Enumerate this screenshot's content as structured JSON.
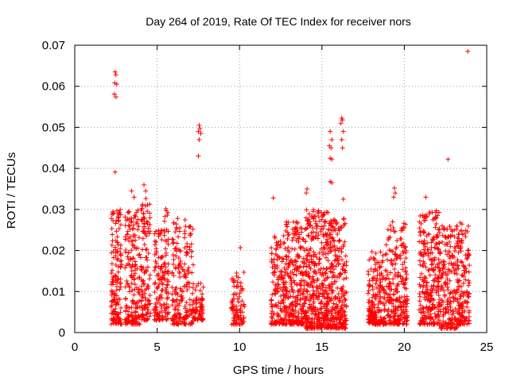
{
  "chart_data": {
    "type": "scatter",
    "title": "Day 264 of 2019, Rate Of TEC Index for receiver nors",
    "xlabel": "GPS time / hours",
    "ylabel": "ROTI / TECUs",
    "xlim": [
      0,
      25
    ],
    "ylim": [
      0,
      0.07
    ],
    "xticks": [
      0,
      5,
      10,
      15,
      20,
      25
    ],
    "yticks": [
      0,
      0.01,
      0.02,
      0.03,
      0.04,
      0.05,
      0.06,
      0.07
    ],
    "xtick_labels": [
      "0",
      "5",
      "10",
      "15",
      "20",
      "25"
    ],
    "ytick_labels": [
      "0",
      "0.01",
      "0.02",
      "0.03",
      "0.04",
      "0.05",
      "0.06",
      "0.07"
    ],
    "grid": true,
    "marker": "+",
    "color": "#ff0000",
    "series": [
      {
        "name": "ROTI",
        "outliers": [
          [
            2.45,
            0.0635
          ],
          [
            2.5,
            0.0628
          ],
          [
            2.42,
            0.0608
          ],
          [
            2.55,
            0.0605
          ],
          [
            2.4,
            0.0581
          ],
          [
            2.5,
            0.0574
          ],
          [
            2.45,
            0.0391
          ],
          [
            7.55,
            0.0505
          ],
          [
            7.6,
            0.0497
          ],
          [
            7.5,
            0.049
          ],
          [
            7.65,
            0.0485
          ],
          [
            7.55,
            0.047
          ],
          [
            7.5,
            0.043
          ],
          [
            15.5,
            0.049
          ],
          [
            15.6,
            0.047
          ],
          [
            15.45,
            0.0455
          ],
          [
            15.55,
            0.045
          ],
          [
            15.5,
            0.0425
          ],
          [
            15.6,
            0.0422
          ],
          [
            16.2,
            0.0522
          ],
          [
            16.25,
            0.0518
          ],
          [
            16.15,
            0.051
          ],
          [
            16.3,
            0.049
          ],
          [
            16.2,
            0.047
          ],
          [
            16.25,
            0.045
          ],
          [
            15.5,
            0.0368
          ],
          [
            15.6,
            0.0365
          ],
          [
            12.05,
            0.0328
          ],
          [
            22.65,
            0.0422
          ],
          [
            23.85,
            0.0685
          ],
          [
            4.2,
            0.036
          ],
          [
            4.3,
            0.0345
          ],
          [
            3.45,
            0.0345
          ],
          [
            3.6,
            0.033
          ],
          [
            14.1,
            0.035
          ],
          [
            14.05,
            0.034
          ],
          [
            19.4,
            0.0352
          ],
          [
            19.45,
            0.034
          ],
          [
            19.35,
            0.033
          ],
          [
            21.3,
            0.033
          ],
          [
            10.05,
            0.0207
          ],
          [
            16.3,
            0.0325
          ]
        ],
        "bands": [
          {
            "x": [
              2.2,
              2.85
            ],
            "ymin": 0.002,
            "ymax": 0.03,
            "n": 150
          },
          {
            "x": [
              3.05,
              3.95
            ],
            "ymin": 0.002,
            "ymax": 0.03,
            "n": 180
          },
          {
            "x": [
              4.0,
              4.6
            ],
            "ymin": 0.003,
            "ymax": 0.033,
            "n": 120
          },
          {
            "x": [
              4.8,
              5.35
            ],
            "ymin": 0.003,
            "ymax": 0.025,
            "n": 100
          },
          {
            "x": [
              5.4,
              5.7
            ],
            "ymin": 0.003,
            "ymax": 0.031,
            "n": 60
          },
          {
            "x": [
              5.9,
              7.2
            ],
            "ymin": 0.002,
            "ymax": 0.028,
            "n": 200
          },
          {
            "x": [
              7.2,
              7.8
            ],
            "ymin": 0.003,
            "ymax": 0.012,
            "n": 70
          },
          {
            "x": [
              9.5,
              10.3
            ],
            "ymin": 0.002,
            "ymax": 0.015,
            "n": 90
          },
          {
            "x": [
              11.9,
              12.8
            ],
            "ymin": 0.002,
            "ymax": 0.024,
            "n": 150
          },
          {
            "x": [
              12.8,
              14.0
            ],
            "ymin": 0.002,
            "ymax": 0.027,
            "n": 260
          },
          {
            "x": [
              14.0,
              15.4
            ],
            "ymin": 0.001,
            "ymax": 0.03,
            "n": 380
          },
          {
            "x": [
              15.4,
              16.5
            ],
            "ymin": 0.001,
            "ymax": 0.028,
            "n": 260
          },
          {
            "x": [
              17.8,
              18.9
            ],
            "ymin": 0.002,
            "ymax": 0.02,
            "n": 200
          },
          {
            "x": [
              18.9,
              20.2
            ],
            "ymin": 0.002,
            "ymax": 0.027,
            "n": 240
          },
          {
            "x": [
              20.9,
              22.1
            ],
            "ymin": 0.002,
            "ymax": 0.03,
            "n": 260
          },
          {
            "x": [
              22.1,
              23.2
            ],
            "ymin": 0.001,
            "ymax": 0.026,
            "n": 200
          },
          {
            "x": [
              23.2,
              23.95
            ],
            "ymin": 0.002,
            "ymax": 0.027,
            "n": 150
          }
        ]
      }
    ]
  }
}
